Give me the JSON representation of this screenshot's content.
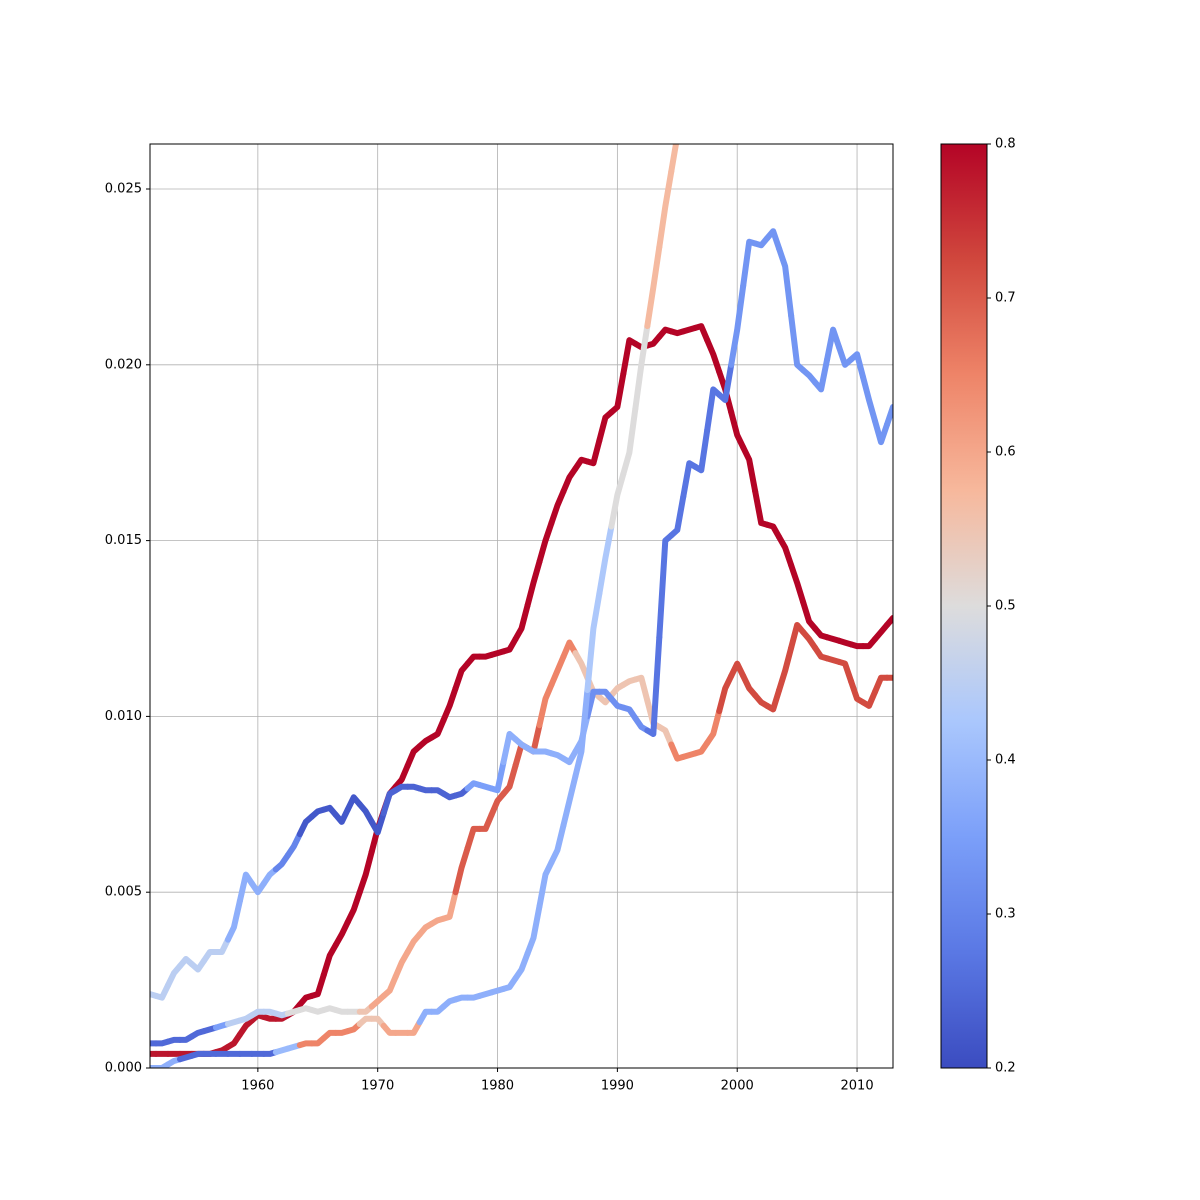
{
  "chart_data": {
    "type": "line",
    "x": [
      1951,
      1952,
      1953,
      1954,
      1955,
      1956,
      1957,
      1958,
      1959,
      1960,
      1961,
      1962,
      1963,
      1964,
      1965,
      1966,
      1967,
      1968,
      1969,
      1970,
      1971,
      1972,
      1973,
      1974,
      1975,
      1976,
      1977,
      1978,
      1979,
      1980,
      1981,
      1982,
      1983,
      1984,
      1985,
      1986,
      1987,
      1988,
      1989,
      1990,
      1991,
      1992,
      1993,
      1994,
      1995,
      1996,
      1997,
      1998,
      1999,
      2000,
      2001,
      2002,
      2003,
      2004,
      2005,
      2006,
      2007,
      2008,
      2009,
      2010,
      2011,
      2012,
      2013
    ],
    "series": [
      {
        "values": [
          0.0004,
          0.0004,
          0.0004,
          0.0004,
          0.0004,
          0.0004,
          0.0005,
          0.0007,
          0.0012,
          0.0015,
          0.0014,
          0.0014,
          0.0016,
          0.002,
          0.0021,
          0.0032,
          0.0038,
          0.0045,
          0.0055,
          0.0068,
          0.0078,
          0.0082,
          0.009,
          0.0093,
          0.0095,
          0.0103,
          0.0113,
          0.0117,
          0.0117,
          0.0118,
          0.0119,
          0.0125,
          0.0138,
          0.015,
          0.016,
          0.0168,
          0.0173,
          0.0172,
          0.0185,
          0.0188,
          0.0207,
          0.0205,
          0.0206,
          0.021,
          0.0209,
          0.021,
          0.0211,
          0.0203,
          0.0193,
          0.018,
          0.0173,
          0.0155,
          0.0154,
          0.0148,
          0.0138,
          0.0127,
          0.0123,
          0.0122,
          0.0121,
          0.012,
          0.012,
          0.0124,
          0.0128
        ],
        "c": [
          0.78,
          0.78,
          0.78,
          0.78,
          0.78,
          0.78,
          0.78,
          0.78,
          0.78,
          0.78,
          0.78,
          0.78,
          0.8,
          0.8,
          0.8,
          0.8,
          0.8,
          0.8,
          0.8,
          0.8,
          0.8,
          0.8,
          0.8,
          0.8,
          0.8,
          0.8,
          0.8,
          0.8,
          0.8,
          0.8,
          0.8,
          0.8,
          0.8,
          0.8,
          0.8,
          0.8,
          0.8,
          0.8,
          0.8,
          0.8,
          0.8,
          0.8,
          0.8,
          0.8,
          0.8,
          0.8,
          0.8,
          0.8,
          0.8,
          0.8,
          0.8,
          0.8,
          0.8,
          0.8,
          0.8,
          0.8,
          0.8,
          0.8,
          0.8,
          0.8,
          0.8,
          0.8,
          0.8
        ]
      },
      {
        "values": [
          0.0007,
          0.0007,
          0.0008,
          0.0008,
          0.001,
          0.0011,
          0.0012,
          0.0013,
          0.0014,
          0.0016,
          0.0016,
          0.0015,
          0.0016,
          0.0017,
          0.0016,
          0.0017,
          0.0016,
          0.0016,
          0.0016,
          0.0019,
          0.0022,
          0.003,
          0.0036,
          0.004,
          0.0042,
          0.0043,
          0.0057,
          0.0068,
          0.0068,
          0.0076,
          0.008,
          0.0092,
          0.009,
          0.0105,
          0.0113,
          0.0121,
          0.0115,
          0.0107,
          0.0104,
          0.0108,
          0.011,
          0.0111,
          0.0098,
          0.0096,
          0.0088,
          0.0089,
          0.009,
          0.0095,
          0.0108,
          0.0115,
          0.0108,
          0.0104,
          0.0102,
          0.0113,
          0.0126,
          0.0122,
          0.0117,
          0.0116,
          0.0115,
          0.0105,
          0.0103,
          0.0111,
          0.0111
        ],
        "c": [
          0.25,
          0.25,
          0.25,
          0.25,
          0.25,
          0.25,
          0.35,
          0.45,
          0.45,
          0.45,
          0.45,
          0.45,
          0.5,
          0.5,
          0.5,
          0.5,
          0.5,
          0.5,
          0.55,
          0.6,
          0.6,
          0.6,
          0.6,
          0.6,
          0.6,
          0.6,
          0.7,
          0.7,
          0.7,
          0.7,
          0.7,
          0.7,
          0.7,
          0.65,
          0.65,
          0.65,
          0.55,
          0.55,
          0.55,
          0.55,
          0.55,
          0.55,
          0.55,
          0.55,
          0.65,
          0.65,
          0.65,
          0.65,
          0.72,
          0.72,
          0.72,
          0.72,
          0.72,
          0.72,
          0.72,
          0.72,
          0.72,
          0.72,
          0.72,
          0.72,
          0.72,
          0.72,
          0.72
        ]
      },
      {
        "values": [
          0.0021,
          0.002,
          0.0027,
          0.0031,
          0.0028,
          0.0033,
          0.0033,
          0.004,
          0.0055,
          0.005,
          0.0055,
          0.0058,
          0.0063,
          0.007,
          0.0073,
          0.0074,
          0.007,
          0.0077,
          0.0073,
          0.0067,
          0.0078,
          0.008,
          0.008,
          0.0079,
          0.0079,
          0.0077,
          0.0078,
          0.0081,
          0.008,
          0.0079,
          0.0095,
          0.0092,
          0.009,
          0.009,
          0.0089,
          0.0087,
          0.0093,
          0.0107,
          0.0107,
          0.0103,
          0.0102,
          0.0097,
          0.0095,
          0.015,
          0.0153,
          0.0172,
          0.017,
          0.0193,
          0.019,
          0.021,
          0.0235,
          0.0234,
          0.0238,
          0.0228,
          0.02,
          0.0197,
          0.0193,
          0.021,
          0.02,
          0.0203,
          0.019,
          0.0178,
          0.0188
        ],
        "c": [
          0.45,
          0.45,
          0.45,
          0.45,
          0.45,
          0.45,
          0.45,
          0.38,
          0.38,
          0.38,
          0.38,
          0.3,
          0.3,
          0.22,
          0.22,
          0.22,
          0.22,
          0.22,
          0.22,
          0.22,
          0.24,
          0.24,
          0.24,
          0.24,
          0.24,
          0.24,
          0.24,
          0.35,
          0.35,
          0.35,
          0.38,
          0.38,
          0.38,
          0.38,
          0.38,
          0.38,
          0.38,
          0.32,
          0.32,
          0.32,
          0.32,
          0.32,
          0.27,
          0.27,
          0.27,
          0.27,
          0.27,
          0.27,
          0.27,
          0.33,
          0.33,
          0.33,
          0.33,
          0.33,
          0.33,
          0.33,
          0.33,
          0.33,
          0.33,
          0.33,
          0.33,
          0.33,
          0.33
        ]
      },
      {
        "values": [
          0,
          0,
          0.0002,
          0.0003,
          0.0004,
          0.0004,
          0.0004,
          0.0004,
          0.0004,
          0.0004,
          0.0004,
          0.0005,
          0.0006,
          0.0007,
          0.0007,
          0.001,
          0.001,
          0.0011,
          0.0014,
          0.0014,
          0.001,
          0.001,
          0.001,
          0.0016,
          0.0016,
          0.0019,
          0.002,
          0.002,
          0.0021,
          0.0022,
          0.0023,
          0.0028,
          0.0037,
          0.0055,
          0.0062,
          0.0076,
          0.009,
          0.0125,
          0.0145,
          0.0163,
          0.0175,
          0.02,
          0.0222,
          0.0245,
          0.0265,
          null,
          null,
          null,
          null,
          null,
          null,
          null,
          null,
          null,
          null,
          null,
          null,
          null,
          null,
          null,
          null,
          null,
          null
        ],
        "c": [
          0.38,
          0.38,
          0.38,
          0.25,
          0.25,
          0.25,
          0.25,
          0.25,
          0.25,
          0.25,
          0.25,
          0.4,
          0.4,
          0.65,
          0.65,
          0.65,
          0.65,
          0.65,
          0.55,
          0.55,
          0.6,
          0.6,
          0.6,
          0.38,
          0.38,
          0.38,
          0.38,
          0.38,
          0.38,
          0.38,
          0.38,
          0.38,
          0.38,
          0.38,
          0.38,
          0.38,
          0.38,
          0.43,
          0.43,
          0.5,
          0.5,
          0.5,
          0.57,
          0.57,
          0.57,
          null,
          null,
          null,
          null,
          null,
          null,
          null,
          null,
          null,
          null,
          null,
          null,
          null,
          null,
          null,
          null,
          null,
          null
        ]
      }
    ],
    "xlim": [
      1951,
      2013
    ],
    "ylim": [
      0,
      0.02628
    ],
    "xticks": [
      1960,
      1970,
      1980,
      1990,
      2000,
      2010
    ],
    "yticks": [
      {
        "value": 0,
        "label": "0.000"
      },
      {
        "value": 0.005,
        "label": "0.005"
      },
      {
        "value": 0.01,
        "label": "0.010"
      },
      {
        "value": 0.015,
        "label": "0.015"
      },
      {
        "value": 0.02,
        "label": "0.020"
      },
      {
        "value": 0.025,
        "label": "0.025"
      }
    ],
    "grid": true,
    "colormap": [
      "#3b4cc0",
      "#5a78e4",
      "#7b9ff9",
      "#aac7fd",
      "#dddcdc",
      "#f7b89c",
      "#ee8468",
      "#d0473d",
      "#b40426"
    ],
    "clim": [
      0.2,
      0.8
    ],
    "cticks": [
      0.2,
      0.3,
      0.4,
      0.5,
      0.6,
      0.7,
      0.8
    ]
  }
}
